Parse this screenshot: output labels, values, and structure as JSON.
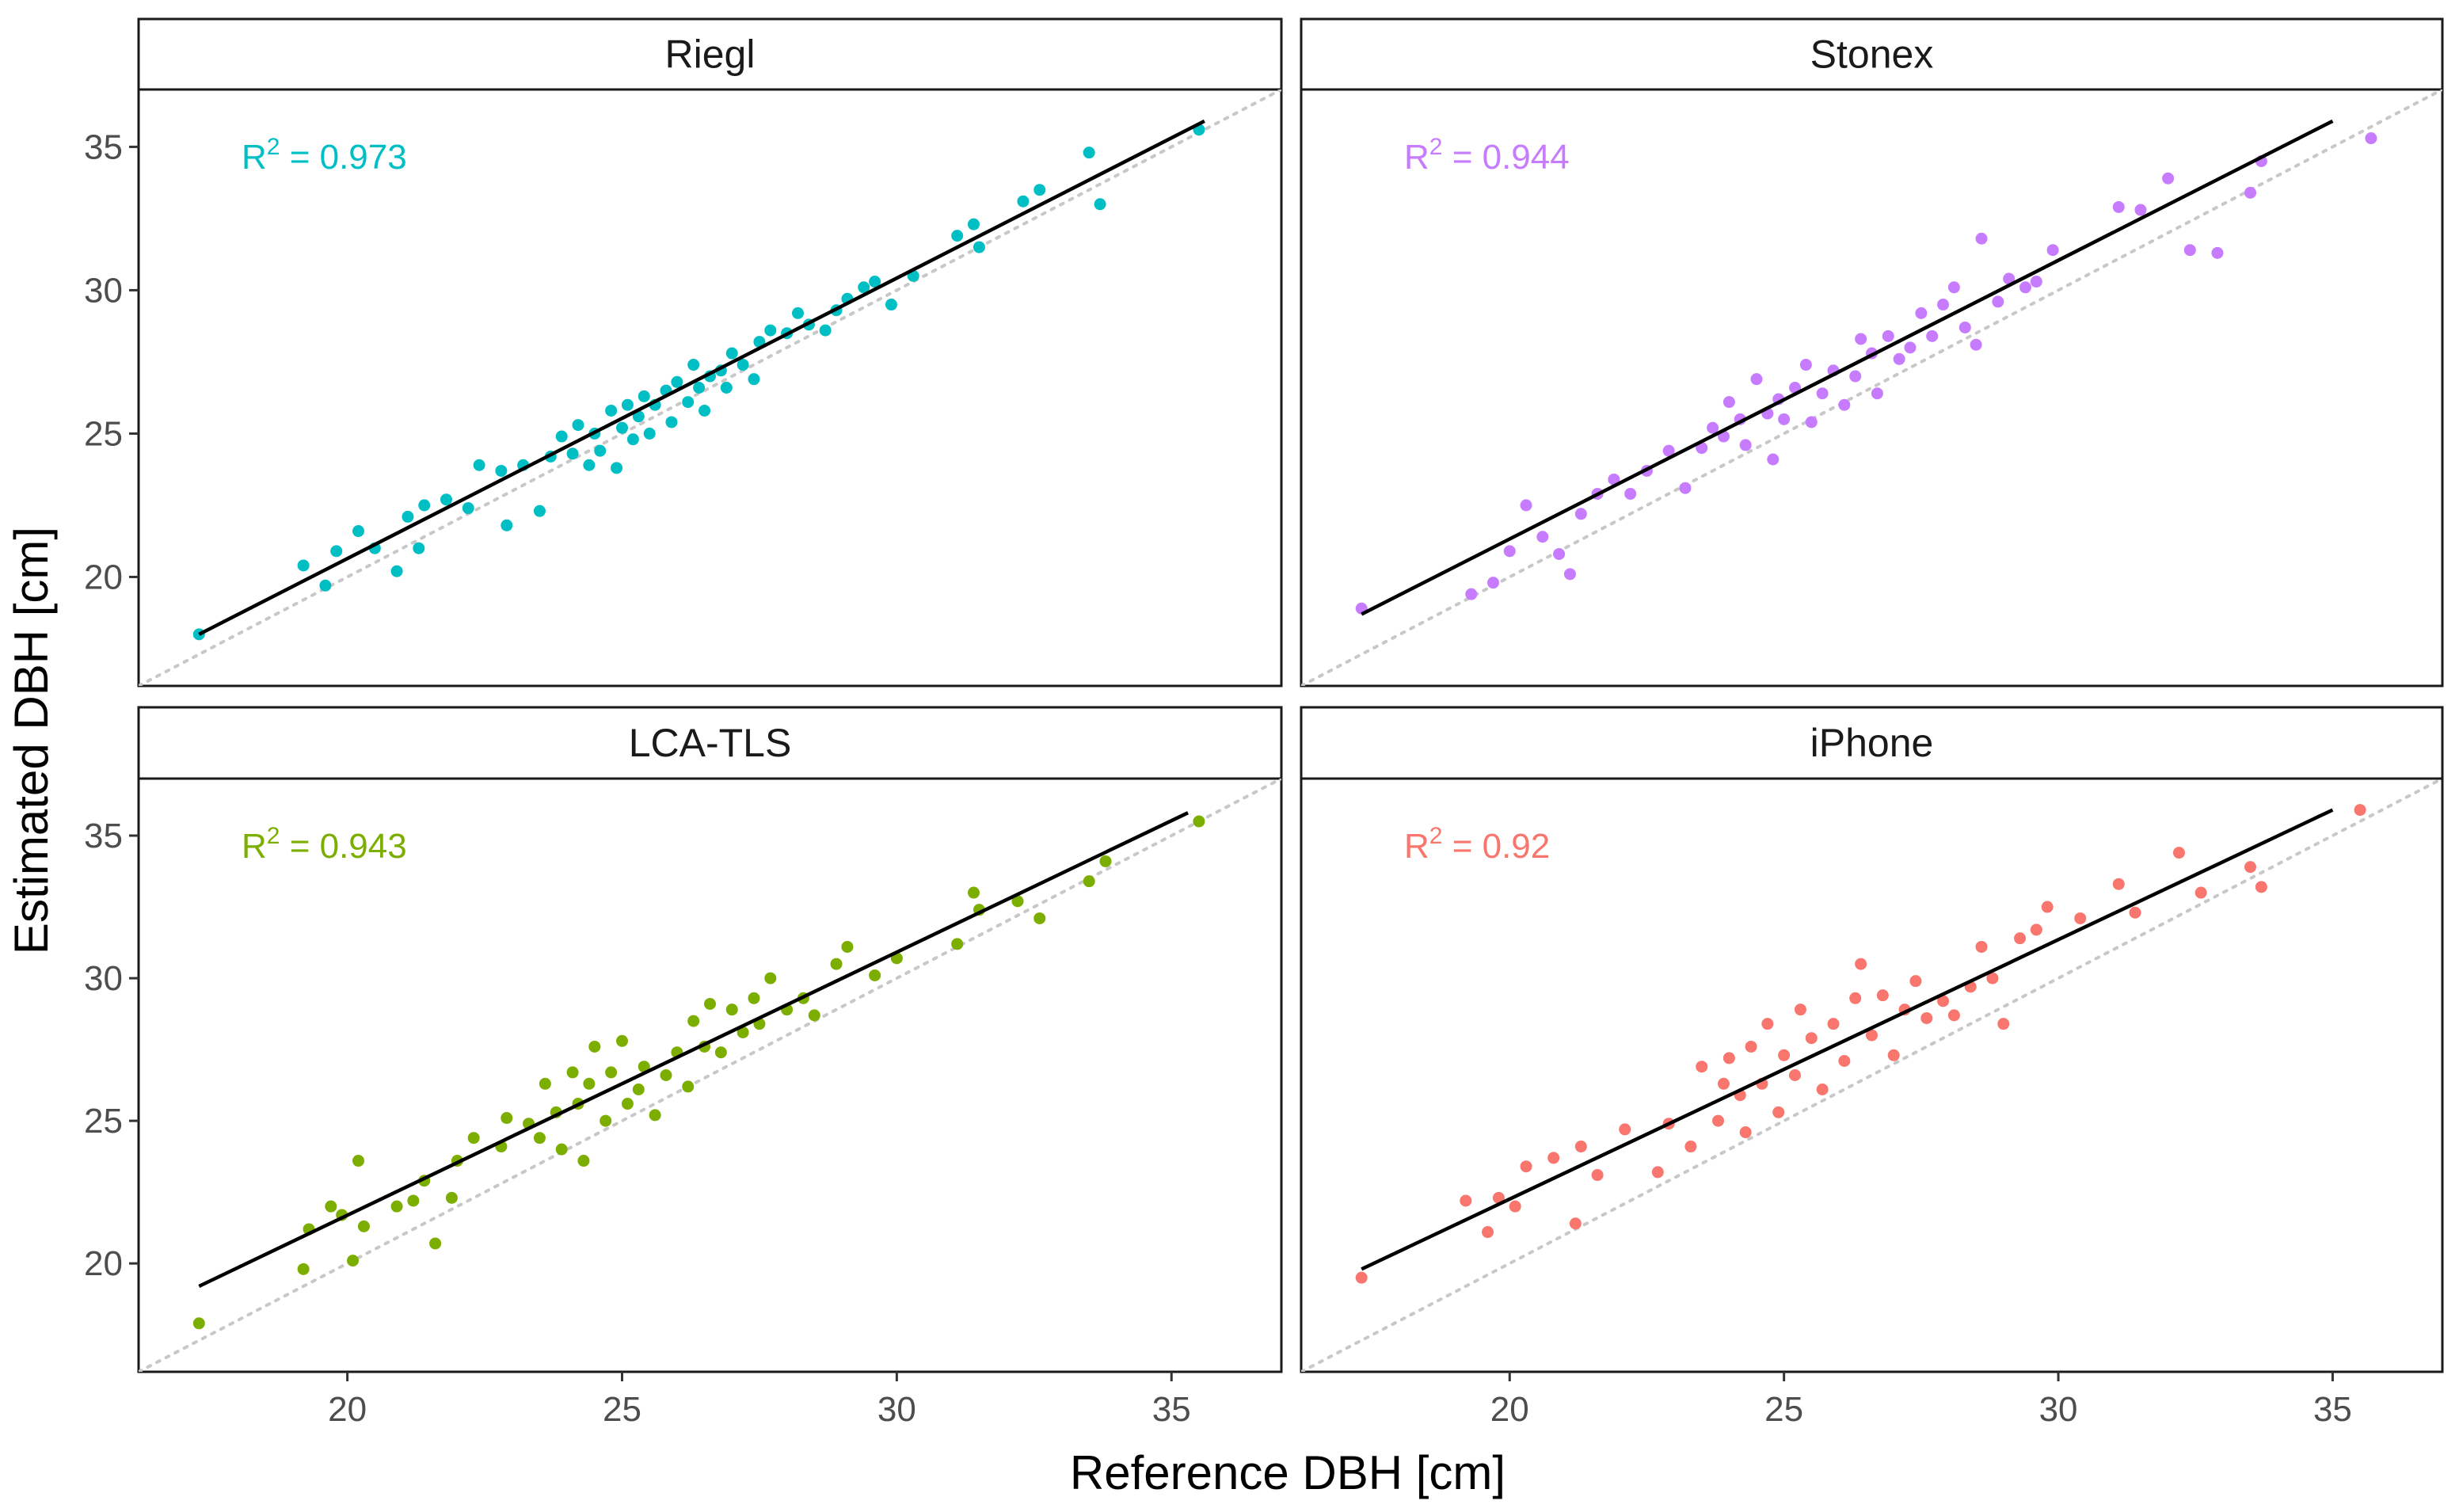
{
  "figure": {
    "xlabel": "Reference DBH [cm]",
    "ylabel": "Estimated DBH [cm]"
  },
  "chart_data": [
    {
      "type": "scatter",
      "panel": "Riegl",
      "color": "#00BFC4",
      "annotation": {
        "prefix": "R",
        "superscript": "2",
        "text": " = 0.973"
      },
      "xlim": [
        16.2,
        37.0
      ],
      "ylim": [
        16.2,
        37.0
      ],
      "xticks": [
        20,
        25,
        30,
        35
      ],
      "yticks": [
        20,
        25,
        30,
        35
      ],
      "x_tick_labels": [
        "20",
        "25",
        "30",
        "35"
      ],
      "y_tick_labels": [
        "20",
        "25",
        "30",
        "35"
      ],
      "identity_line": true,
      "fit_line": {
        "x": [
          17.3,
          35.6
        ],
        "y": [
          18.0,
          35.9
        ]
      },
      "points": [
        [
          17.3,
          18.0
        ],
        [
          19.2,
          20.4
        ],
        [
          19.6,
          19.7
        ],
        [
          19.8,
          20.9
        ],
        [
          20.2,
          21.6
        ],
        [
          20.5,
          21.0
        ],
        [
          20.9,
          20.2
        ],
        [
          21.1,
          22.1
        ],
        [
          21.4,
          22.5
        ],
        [
          21.3,
          21.0
        ],
        [
          21.8,
          22.7
        ],
        [
          22.2,
          22.4
        ],
        [
          22.4,
          23.9
        ],
        [
          22.8,
          23.7
        ],
        [
          22.9,
          21.8
        ],
        [
          23.2,
          23.9
        ],
        [
          23.5,
          22.3
        ],
        [
          23.7,
          24.2
        ],
        [
          23.9,
          24.9
        ],
        [
          24.1,
          24.3
        ],
        [
          24.2,
          25.3
        ],
        [
          24.4,
          23.9
        ],
        [
          24.5,
          25.0
        ],
        [
          24.6,
          24.4
        ],
        [
          24.8,
          25.8
        ],
        [
          24.9,
          23.8
        ],
        [
          25.0,
          25.2
        ],
        [
          25.1,
          26.0
        ],
        [
          25.2,
          24.8
        ],
        [
          25.3,
          25.6
        ],
        [
          25.4,
          26.3
        ],
        [
          25.5,
          25.0
        ],
        [
          25.6,
          26.0
        ],
        [
          25.8,
          26.5
        ],
        [
          25.9,
          25.4
        ],
        [
          26.0,
          26.8
        ],
        [
          26.2,
          26.1
        ],
        [
          26.3,
          27.4
        ],
        [
          26.4,
          26.6
        ],
        [
          26.5,
          25.8
        ],
        [
          26.6,
          27.0
        ],
        [
          26.8,
          27.2
        ],
        [
          26.9,
          26.6
        ],
        [
          27.0,
          27.8
        ],
        [
          27.2,
          27.4
        ],
        [
          27.4,
          26.9
        ],
        [
          27.5,
          28.2
        ],
        [
          27.7,
          28.6
        ],
        [
          28.0,
          28.5
        ],
        [
          28.2,
          29.2
        ],
        [
          28.4,
          28.8
        ],
        [
          28.7,
          28.6
        ],
        [
          28.9,
          29.3
        ],
        [
          29.1,
          29.7
        ],
        [
          29.4,
          30.1
        ],
        [
          29.6,
          30.3
        ],
        [
          29.9,
          29.5
        ],
        [
          30.3,
          30.5
        ],
        [
          31.1,
          31.9
        ],
        [
          31.4,
          32.3
        ],
        [
          31.5,
          31.5
        ],
        [
          32.3,
          33.1
        ],
        [
          32.6,
          33.5
        ],
        [
          33.5,
          34.8
        ],
        [
          33.7,
          33.0
        ],
        [
          35.5,
          35.6
        ]
      ]
    },
    {
      "type": "scatter",
      "panel": "Stonex",
      "color": "#C77CFF",
      "annotation": {
        "prefix": "R",
        "superscript": "2",
        "text": " = 0.944"
      },
      "xlim": [
        16.2,
        37.0
      ],
      "ylim": [
        16.2,
        37.0
      ],
      "xticks": [
        20,
        25,
        30,
        35
      ],
      "yticks": [
        20,
        25,
        30,
        35
      ],
      "x_tick_labels": [
        "20",
        "25",
        "30",
        "35"
      ],
      "y_tick_labels": [
        "20",
        "25",
        "30",
        "35"
      ],
      "identity_line": true,
      "fit_line": {
        "x": [
          17.3,
          35.0
        ],
        "y": [
          18.7,
          35.9
        ]
      },
      "points": [
        [
          17.3,
          18.9
        ],
        [
          19.3,
          19.4
        ],
        [
          19.7,
          19.8
        ],
        [
          20.0,
          20.9
        ],
        [
          20.3,
          22.5
        ],
        [
          20.6,
          21.4
        ],
        [
          20.9,
          20.8
        ],
        [
          21.1,
          20.1
        ],
        [
          21.3,
          22.2
        ],
        [
          21.6,
          22.9
        ],
        [
          21.9,
          23.4
        ],
        [
          22.2,
          22.9
        ],
        [
          22.5,
          23.7
        ],
        [
          22.9,
          24.4
        ],
        [
          23.2,
          23.1
        ],
        [
          23.5,
          24.5
        ],
        [
          23.7,
          25.2
        ],
        [
          23.9,
          24.9
        ],
        [
          24.0,
          26.1
        ],
        [
          24.2,
          25.5
        ],
        [
          24.3,
          24.6
        ],
        [
          24.5,
          26.9
        ],
        [
          24.7,
          25.7
        ],
        [
          24.8,
          24.1
        ],
        [
          24.9,
          26.2
        ],
        [
          25.0,
          25.5
        ],
        [
          25.2,
          26.6
        ],
        [
          25.4,
          27.4
        ],
        [
          25.5,
          25.4
        ],
        [
          25.7,
          26.4
        ],
        [
          25.9,
          27.2
        ],
        [
          26.1,
          26.0
        ],
        [
          26.3,
          27.0
        ],
        [
          26.4,
          28.3
        ],
        [
          26.6,
          27.8
        ],
        [
          26.7,
          26.4
        ],
        [
          26.9,
          28.4
        ],
        [
          27.1,
          27.6
        ],
        [
          27.3,
          28.0
        ],
        [
          27.5,
          29.2
        ],
        [
          27.7,
          28.4
        ],
        [
          27.9,
          29.5
        ],
        [
          28.1,
          30.1
        ],
        [
          28.3,
          28.7
        ],
        [
          28.5,
          28.1
        ],
        [
          28.6,
          31.8
        ],
        [
          28.9,
          29.6
        ],
        [
          29.1,
          30.4
        ],
        [
          29.4,
          30.1
        ],
        [
          29.6,
          30.3
        ],
        [
          29.9,
          31.4
        ],
        [
          31.1,
          32.9
        ],
        [
          31.5,
          32.8
        ],
        [
          32.0,
          33.9
        ],
        [
          32.4,
          31.4
        ],
        [
          32.9,
          31.3
        ],
        [
          33.5,
          33.4
        ],
        [
          33.7,
          34.5
        ],
        [
          35.7,
          35.3
        ]
      ]
    },
    {
      "type": "scatter",
      "panel": "LCA-TLS",
      "color": "#7CAE00",
      "annotation": {
        "prefix": "R",
        "superscript": "2",
        "text": " = 0.943"
      },
      "xlim": [
        16.2,
        37.0
      ],
      "ylim": [
        16.2,
        37.0
      ],
      "xticks": [
        20,
        25,
        30,
        35
      ],
      "yticks": [
        20,
        25,
        30,
        35
      ],
      "x_tick_labels": [
        "20",
        "25",
        "30",
        "35"
      ],
      "y_tick_labels": [
        "20",
        "25",
        "30",
        "35"
      ],
      "identity_line": true,
      "fit_line": {
        "x": [
          17.3,
          35.3
        ],
        "y": [
          19.2,
          35.8
        ]
      },
      "points": [
        [
          17.3,
          17.9
        ],
        [
          19.2,
          19.8
        ],
        [
          19.3,
          21.2
        ],
        [
          19.7,
          22.0
        ],
        [
          19.9,
          21.7
        ],
        [
          20.1,
          20.1
        ],
        [
          20.3,
          21.3
        ],
        [
          20.2,
          23.6
        ],
        [
          20.9,
          22.0
        ],
        [
          21.2,
          22.2
        ],
        [
          21.4,
          22.9
        ],
        [
          21.6,
          20.7
        ],
        [
          21.9,
          22.3
        ],
        [
          22.0,
          23.6
        ],
        [
          22.3,
          24.4
        ],
        [
          22.8,
          24.1
        ],
        [
          22.9,
          25.1
        ],
        [
          23.3,
          24.9
        ],
        [
          23.5,
          24.4
        ],
        [
          23.6,
          26.3
        ],
        [
          23.8,
          25.3
        ],
        [
          23.9,
          24.0
        ],
        [
          24.1,
          26.7
        ],
        [
          24.2,
          25.6
        ],
        [
          24.3,
          23.6
        ],
        [
          24.4,
          26.3
        ],
        [
          24.5,
          27.6
        ],
        [
          24.7,
          25.0
        ],
        [
          24.8,
          26.7
        ],
        [
          25.0,
          27.8
        ],
        [
          25.1,
          25.6
        ],
        [
          25.3,
          26.1
        ],
        [
          25.4,
          26.9
        ],
        [
          25.6,
          25.2
        ],
        [
          25.8,
          26.6
        ],
        [
          26.0,
          27.4
        ],
        [
          26.2,
          26.2
        ],
        [
          26.3,
          28.5
        ],
        [
          26.5,
          27.6
        ],
        [
          26.6,
          29.1
        ],
        [
          26.8,
          27.4
        ],
        [
          27.0,
          28.9
        ],
        [
          27.2,
          28.1
        ],
        [
          27.4,
          29.3
        ],
        [
          27.5,
          28.4
        ],
        [
          27.7,
          30.0
        ],
        [
          28.0,
          28.9
        ],
        [
          28.3,
          29.3
        ],
        [
          28.5,
          28.7
        ],
        [
          28.9,
          30.5
        ],
        [
          29.1,
          31.1
        ],
        [
          29.6,
          30.1
        ],
        [
          30.0,
          30.7
        ],
        [
          31.1,
          31.2
        ],
        [
          31.4,
          33.0
        ],
        [
          31.5,
          32.4
        ],
        [
          32.2,
          32.7
        ],
        [
          32.6,
          32.1
        ],
        [
          33.5,
          33.4
        ],
        [
          33.8,
          34.1
        ],
        [
          35.5,
          35.5
        ]
      ]
    },
    {
      "type": "scatter",
      "panel": "iPhone",
      "color": "#F8766D",
      "annotation": {
        "prefix": "R",
        "superscript": "2",
        "text": " = 0.92"
      },
      "xlim": [
        16.2,
        37.0
      ],
      "ylim": [
        16.2,
        37.0
      ],
      "xticks": [
        20,
        25,
        30,
        35
      ],
      "yticks": [
        20,
        25,
        30,
        35
      ],
      "x_tick_labels": [
        "20",
        "25",
        "30",
        "35"
      ],
      "y_tick_labels": [
        "20",
        "25",
        "30",
        "35"
      ],
      "identity_line": true,
      "fit_line": {
        "x": [
          17.3,
          35.0
        ],
        "y": [
          19.8,
          35.9
        ]
      },
      "points": [
        [
          17.3,
          19.5
        ],
        [
          19.2,
          22.2
        ],
        [
          19.6,
          21.1
        ],
        [
          19.8,
          22.3
        ],
        [
          20.1,
          22.0
        ],
        [
          20.3,
          23.4
        ],
        [
          20.8,
          23.7
        ],
        [
          21.2,
          21.4
        ],
        [
          21.3,
          24.1
        ],
        [
          21.6,
          23.1
        ],
        [
          22.1,
          24.7
        ],
        [
          22.7,
          23.2
        ],
        [
          22.9,
          24.9
        ],
        [
          23.3,
          24.1
        ],
        [
          23.5,
          26.9
        ],
        [
          23.8,
          25.0
        ],
        [
          23.9,
          26.3
        ],
        [
          24.0,
          27.2
        ],
        [
          24.2,
          25.9
        ],
        [
          24.3,
          24.6
        ],
        [
          24.4,
          27.6
        ],
        [
          24.6,
          26.3
        ],
        [
          24.7,
          28.4
        ],
        [
          24.9,
          25.3
        ],
        [
          25.0,
          27.3
        ],
        [
          25.2,
          26.6
        ],
        [
          25.3,
          28.9
        ],
        [
          25.5,
          27.9
        ],
        [
          25.7,
          26.1
        ],
        [
          25.9,
          28.4
        ],
        [
          26.1,
          27.1
        ],
        [
          26.3,
          29.3
        ],
        [
          26.4,
          30.5
        ],
        [
          26.6,
          28.0
        ],
        [
          26.8,
          29.4
        ],
        [
          27.0,
          27.3
        ],
        [
          27.2,
          28.9
        ],
        [
          27.4,
          29.9
        ],
        [
          27.6,
          28.6
        ],
        [
          27.9,
          29.2
        ],
        [
          28.1,
          28.7
        ],
        [
          28.4,
          29.7
        ],
        [
          28.6,
          31.1
        ],
        [
          28.8,
          30.0
        ],
        [
          29.0,
          28.4
        ],
        [
          29.3,
          31.4
        ],
        [
          29.6,
          31.7
        ],
        [
          29.8,
          32.5
        ],
        [
          30.4,
          32.1
        ],
        [
          31.1,
          33.3
        ],
        [
          31.4,
          32.3
        ],
        [
          32.2,
          34.4
        ],
        [
          32.6,
          33.0
        ],
        [
          33.5,
          33.9
        ],
        [
          33.7,
          33.2
        ],
        [
          35.5,
          35.9
        ]
      ]
    }
  ]
}
